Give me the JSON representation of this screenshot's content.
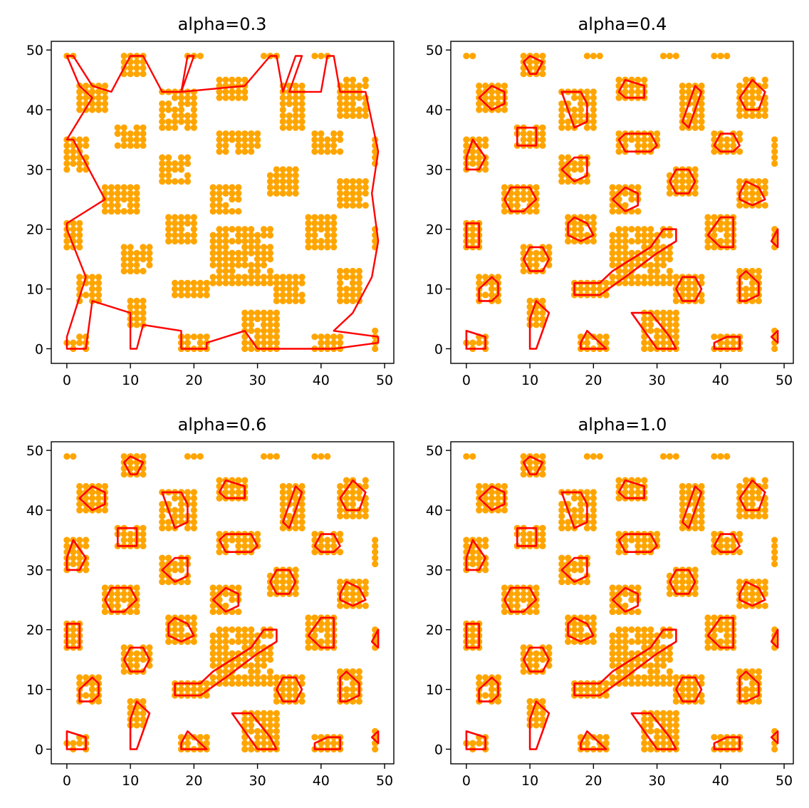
{
  "figure": {
    "point_color": "#ffa500",
    "boundary_color": "#ff0000"
  },
  "chart_data": [
    {
      "type": "scatter",
      "title": "alpha=0.3",
      "xlabel": "",
      "ylabel": "",
      "xlim": [
        -2.45,
        51.45
      ],
      "ylim": [
        -2.45,
        51.45
      ],
      "xticks": [
        0,
        10,
        20,
        30,
        40,
        50
      ],
      "yticks": [
        0,
        10,
        20,
        30,
        40,
        50
      ],
      "tick_labels": [
        "0",
        "10",
        "20",
        "30",
        "40",
        "50"
      ],
      "grid": false,
      "clusters": [
        {
          "x": [
            0,
            3
          ],
          "y": [
            0,
            2
          ]
        },
        {
          "x": [
            10,
            12
          ],
          "y": [
            4,
            8
          ]
        },
        {
          "x": [
            18,
            22
          ],
          "y": [
            0,
            2
          ]
        },
        {
          "x": [
            28,
            33
          ],
          "y": [
            0,
            6
          ]
        },
        {
          "x": [
            39,
            43
          ],
          "y": [
            0,
            2
          ]
        },
        {
          "x": [
            48.5,
            49
          ],
          "y": [
            0,
            3
          ]
        },
        {
          "x": [
            2,
            5
          ],
          "y": [
            8,
            12
          ]
        },
        {
          "x": [
            9,
            13
          ],
          "y": [
            13,
            17
          ]
        },
        {
          "x": [
            17,
            22
          ],
          "y": [
            9,
            11
          ]
        },
        {
          "x": [
            23,
            32
          ],
          "y": [
            11,
            20
          ]
        },
        {
          "x": [
            33,
            37
          ],
          "y": [
            8,
            12
          ]
        },
        {
          "x": [
            43,
            46
          ],
          "y": [
            8,
            13
          ]
        },
        {
          "x": [
            0,
            2
          ],
          "y": [
            17,
            21
          ]
        },
        {
          "x": [
            16,
            20
          ],
          "y": [
            18,
            22
          ]
        },
        {
          "x": [
            38,
            42
          ],
          "y": [
            17,
            22
          ]
        },
        {
          "x": [
            48.5,
            49
          ],
          "y": [
            17,
            20
          ]
        },
        {
          "x": [
            6,
            11
          ],
          "y": [
            23,
            27
          ]
        },
        {
          "x": [
            23,
            27
          ],
          "y": [
            23,
            27
          ]
        },
        {
          "x": [
            32,
            36
          ],
          "y": [
            26,
            30
          ]
        },
        {
          "x": [
            43,
            47
          ],
          "y": [
            24,
            28
          ]
        },
        {
          "x": [
            0,
            3
          ],
          "y": [
            30,
            35
          ]
        },
        {
          "x": [
            15,
            19
          ],
          "y": [
            28,
            32
          ]
        },
        {
          "x": [
            8,
            12
          ],
          "y": [
            34,
            37
          ]
        },
        {
          "x": [
            24,
            30
          ],
          "y": [
            33,
            36
          ]
        },
        {
          "x": [
            39,
            43
          ],
          "y": [
            33,
            36
          ]
        },
        {
          "x": [
            48.5,
            49
          ],
          "y": [
            31,
            35
          ]
        },
        {
          "x": [
            2,
            6
          ],
          "y": [
            40,
            44
          ]
        },
        {
          "x": [
            15,
            20
          ],
          "y": [
            37,
            43
          ]
        },
        {
          "x": [
            24,
            28
          ],
          "y": [
            42,
            45
          ]
        },
        {
          "x": [
            34,
            37
          ],
          "y": [
            37,
            44
          ]
        },
        {
          "x": [
            43,
            47
          ],
          "y": [
            39,
            45
          ]
        },
        {
          "x": [
            9,
            12
          ],
          "y": [
            46,
            49
          ]
        },
        {
          "x": [
            0,
            1
          ],
          "y": [
            49,
            49
          ]
        },
        {
          "x": [
            19,
            21
          ],
          "y": [
            49,
            49
          ]
        },
        {
          "x": [
            31,
            33
          ],
          "y": [
            49,
            49
          ]
        },
        {
          "x": [
            39,
            41
          ],
          "y": [
            49,
            49
          ]
        }
      ]
    },
    {
      "type": "scatter",
      "title": "alpha=0.4",
      "xlabel": "",
      "ylabel": "",
      "xlim": [
        -2.45,
        51.45
      ],
      "ylim": [
        -2.45,
        51.45
      ],
      "xticks": [
        0,
        10,
        20,
        30,
        40,
        50
      ],
      "yticks": [
        0,
        10,
        20,
        30,
        40,
        50
      ],
      "tick_labels": [
        "0",
        "10",
        "20",
        "30",
        "40",
        "50"
      ],
      "grid": false,
      "clusters": "same as alpha=0.3"
    },
    {
      "type": "scatter",
      "title": "alpha=0.6",
      "xlabel": "",
      "ylabel": "",
      "xlim": [
        -2.45,
        51.45
      ],
      "ylim": [
        -2.45,
        51.45
      ],
      "xticks": [
        0,
        10,
        20,
        30,
        40,
        50
      ],
      "yticks": [
        0,
        10,
        20,
        30,
        40,
        50
      ],
      "tick_labels": [
        "0",
        "10",
        "20",
        "30",
        "40",
        "50"
      ],
      "grid": false,
      "clusters": "same as alpha=0.3"
    },
    {
      "type": "scatter",
      "title": "alpha=1.0",
      "xlabel": "",
      "ylabel": "",
      "xlim": [
        -2.45,
        51.45
      ],
      "ylim": [
        -2.45,
        51.45
      ],
      "xticks": [
        0,
        10,
        20,
        30,
        40,
        50
      ],
      "yticks": [
        0,
        10,
        20,
        30,
        40,
        50
      ],
      "tick_labels": [
        "0",
        "10",
        "20",
        "30",
        "40",
        "50"
      ],
      "grid": false,
      "clusters": "same as alpha=0.3"
    }
  ]
}
